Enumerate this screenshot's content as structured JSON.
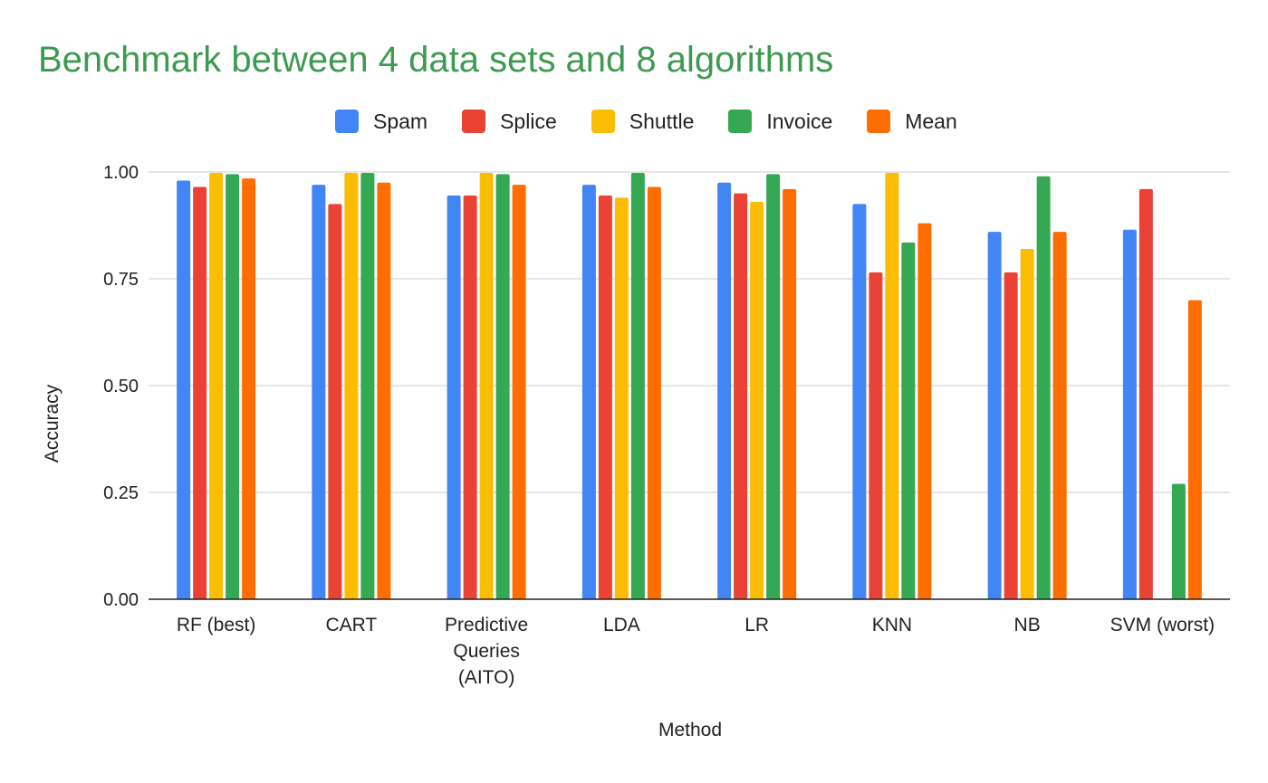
{
  "chart_data": {
    "type": "bar",
    "title": "Benchmark between 4 data sets and 8 algorithms",
    "xlabel": "Method",
    "ylabel": "Accuracy",
    "ylim": [
      0,
      1
    ],
    "yticks": [
      "0.00",
      "0.25",
      "0.50",
      "0.75",
      "1.00"
    ],
    "grid": true,
    "legend_position": "top",
    "categories": [
      "RF (best)",
      "CART",
      "Predictive\nQueries\n(AITO)",
      "LDA",
      "LR",
      "KNN",
      "NB",
      "SVM (worst)"
    ],
    "series": [
      {
        "name": "Spam",
        "color": "#4285f4",
        "values": [
          0.98,
          0.97,
          0.945,
          0.97,
          0.975,
          0.925,
          0.86,
          0.865
        ]
      },
      {
        "name": "Splice",
        "color": "#ea4335",
        "values": [
          0.965,
          0.925,
          0.945,
          0.945,
          0.95,
          0.765,
          0.765,
          0.96
        ]
      },
      {
        "name": "Shuttle",
        "color": "#fbbc04",
        "values": [
          0.998,
          0.998,
          0.998,
          0.94,
          0.93,
          0.998,
          0.82,
          0
        ]
      },
      {
        "name": "Invoice",
        "color": "#34a853",
        "values": [
          0.995,
          0.998,
          0.995,
          0.998,
          0.995,
          0.835,
          0.99,
          0.27
        ]
      },
      {
        "name": "Mean",
        "color": "#ff6d01",
        "values": [
          0.985,
          0.975,
          0.97,
          0.965,
          0.96,
          0.88,
          0.86,
          0.7
        ]
      }
    ]
  }
}
